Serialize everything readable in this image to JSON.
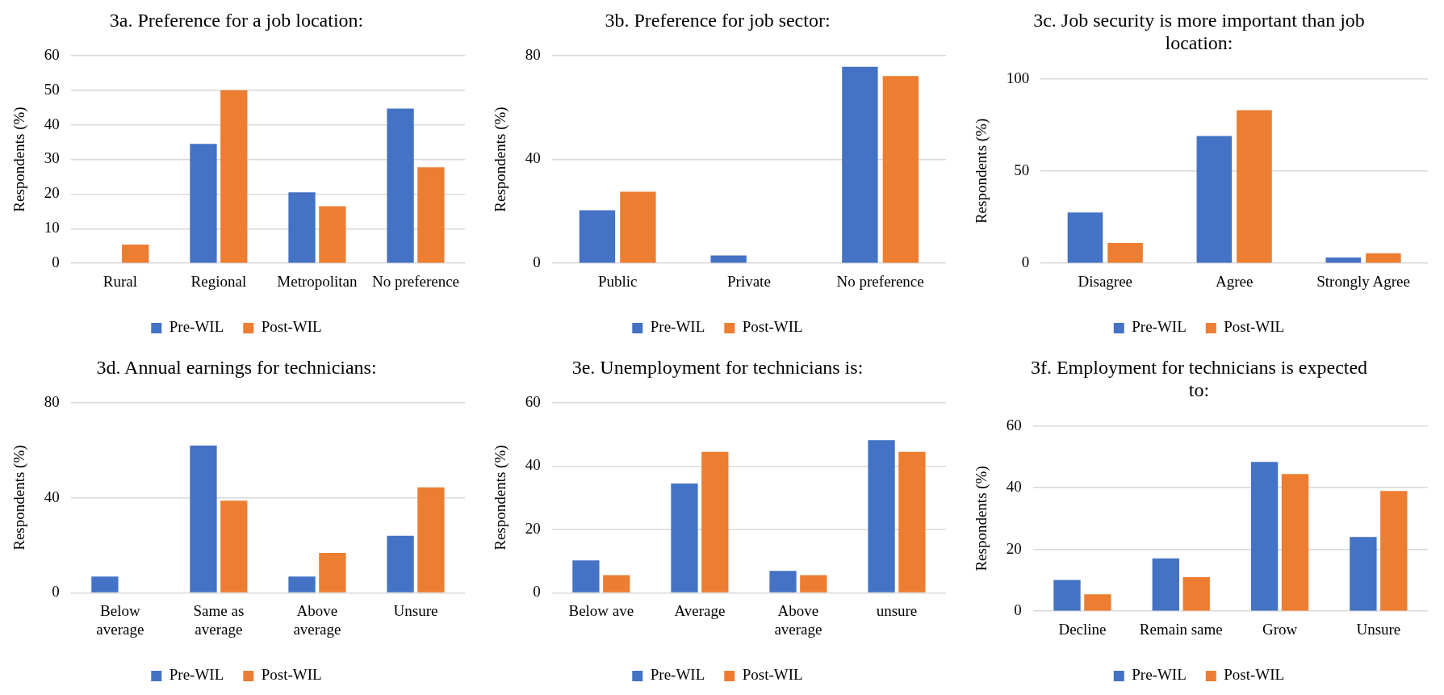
{
  "chart_data": [
    {
      "type": "bar",
      "title": "3a. Preference for a job location:",
      "ylabel": "Respondents (%)",
      "categories": [
        "Rural",
        "Regional",
        "Metropolitan",
        "No preference"
      ],
      "series": [
        {
          "name": "Pre-WIL",
          "color": "#4472c4",
          "values": [
            0,
            34.5,
            20.5,
            44.7
          ]
        },
        {
          "name": "Post-WIL",
          "color": "#ed7d31",
          "values": [
            5.4,
            50,
            16.5,
            27.7
          ]
        }
      ],
      "ylim": [
        0,
        60
      ],
      "yticks": [
        0,
        10,
        20,
        30,
        40,
        50,
        60
      ],
      "grid": "y",
      "legend": "bottom"
    },
    {
      "type": "bar",
      "title": "3b. Preference for job sector:",
      "ylabel": "Respondents (%)",
      "categories": [
        "Public",
        "Private",
        "No preference"
      ],
      "series": [
        {
          "name": "Pre-WIL",
          "color": "#4472c4",
          "values": [
            20.4,
            3,
            75.7
          ]
        },
        {
          "name": "Post-WIL",
          "color": "#ed7d31",
          "values": [
            27.6,
            0,
            72.1
          ]
        }
      ],
      "ylim": [
        0,
        80
      ],
      "yticks": [
        0,
        40,
        80
      ],
      "grid": "y",
      "legend": "bottom"
    },
    {
      "type": "bar",
      "title": "3c. Job security is more important than job location:",
      "ylabel": "Respondents (%)",
      "categories": [
        "Disagree",
        "Agree",
        "Strongly Agree"
      ],
      "series": [
        {
          "name": "Pre-WIL",
          "color": "#4472c4",
          "values": [
            27.5,
            69,
            3.2
          ]
        },
        {
          "name": "Post-WIL",
          "color": "#ed7d31",
          "values": [
            11,
            83,
            5.4
          ]
        }
      ],
      "ylim": [
        0,
        100
      ],
      "yticks": [
        0,
        50,
        100
      ],
      "grid": "y",
      "legend": "bottom"
    },
    {
      "type": "bar",
      "title": "3d. Annual earnings for technicians:",
      "ylabel": "Respondents (%)",
      "categories": [
        "Below average",
        "Same as average",
        "Above average",
        "Unsure"
      ],
      "series": [
        {
          "name": "Pre-WIL",
          "color": "#4472c4",
          "values": [
            6.8,
            61.9,
            6.8,
            24
          ]
        },
        {
          "name": "Post-WIL",
          "color": "#ed7d31",
          "values": [
            0,
            38.8,
            16.8,
            44.4
          ]
        }
      ],
      "ylim": [
        0,
        80
      ],
      "yticks": [
        0,
        40,
        80
      ],
      "grid": "y",
      "legend": "bottom"
    },
    {
      "type": "bar",
      "title": "3e. Unemployment for technicians is:",
      "ylabel": "Respondents (%)",
      "categories": [
        "Below ave",
        "Average",
        "Above average",
        "unsure"
      ],
      "series": [
        {
          "name": "Pre-WIL",
          "color": "#4472c4",
          "values": [
            10.2,
            34.5,
            6.9,
            48.2
          ]
        },
        {
          "name": "Post-WIL",
          "color": "#ed7d31",
          "values": [
            5.6,
            44.5,
            5.6,
            44.5
          ]
        }
      ],
      "ylim": [
        0,
        60
      ],
      "yticks": [
        0,
        20,
        40,
        60
      ],
      "grid": "y",
      "legend": "bottom"
    },
    {
      "type": "bar",
      "title": "3f. Employment for technicians is expected to:",
      "ylabel": "Respondents (%)",
      "categories": [
        "Decline",
        "Remain same",
        "Grow",
        "Unsure"
      ],
      "series": [
        {
          "name": "Pre-WIL",
          "color": "#4472c4",
          "values": [
            10.1,
            17.1,
            48.3,
            24
          ]
        },
        {
          "name": "Post-WIL",
          "color": "#ed7d31",
          "values": [
            5.5,
            11,
            44.4,
            38.9
          ]
        }
      ],
      "ylim": [
        0,
        60
      ],
      "yticks": [
        0,
        20,
        40,
        60
      ],
      "grid": "y",
      "legend": "bottom"
    }
  ]
}
